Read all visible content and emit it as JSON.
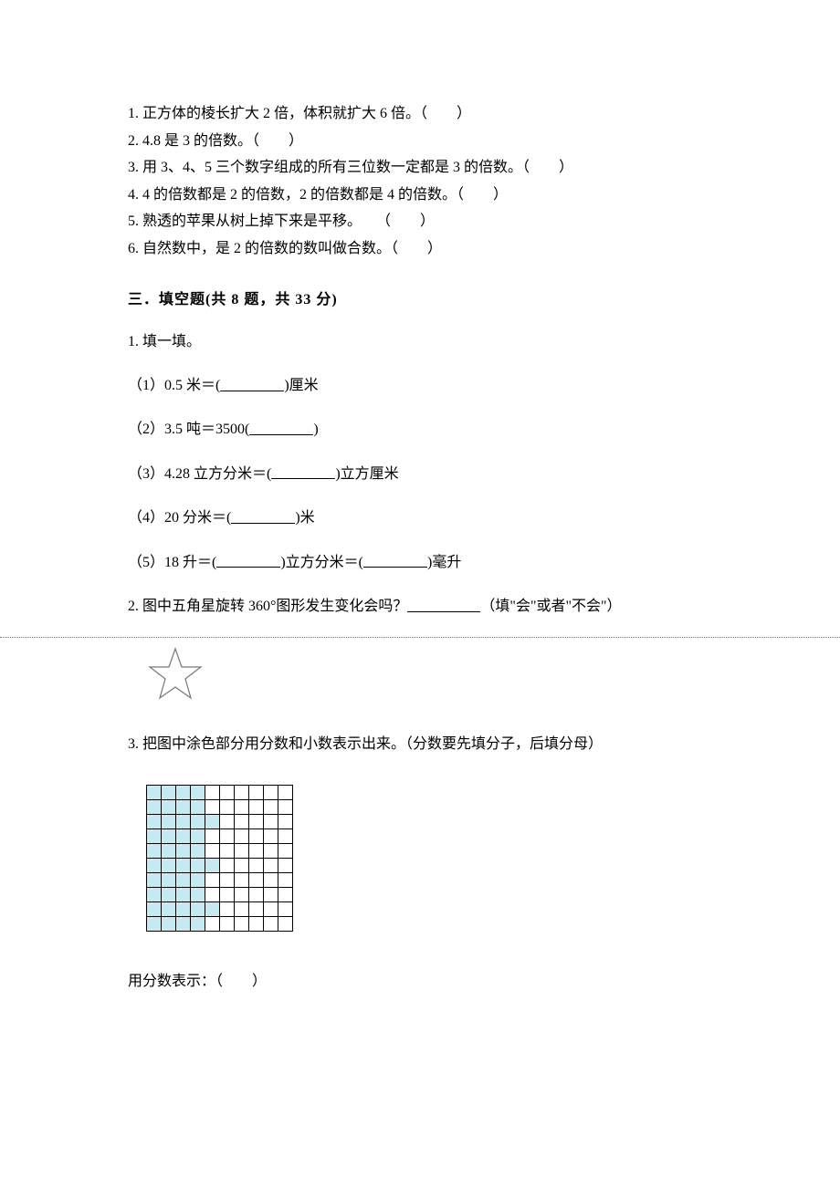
{
  "true_false": {
    "items": [
      "1. 正方体的棱长扩大 2 倍，体积就扩大 6 倍。（　　）",
      "2. 4.8 是 3 的倍数。（　　）",
      "3. 用 3、4、5 三个数字组成的所有三位数一定都是 3 的倍数。（　　）",
      "4. 4 的倍数都是 2 的倍数，2 的倍数都是 4 的倍数。（　　）",
      "5. 熟透的苹果从树上掉下来是平移。　　（　　）",
      "6. 自然数中，是 2 的倍数的数叫做合数。（　　）"
    ]
  },
  "section_header": "三．填空题(共 8 题，共 33 分)",
  "q1": {
    "title": "1. 填一填。",
    "subs": [
      {
        "pre": "（1）0.5 米＝(",
        "post": ")厘米"
      },
      {
        "pre": "（2）3.5 吨＝3500(",
        "post": ")"
      },
      {
        "pre": "（3）4.28 立方分米＝(",
        "post": ")立方厘米"
      },
      {
        "pre": "（4）20 分米＝(",
        "post": ")米"
      },
      {
        "pre": "（5）18 升＝(",
        "mid": ")立方分米＝(",
        "post": ")毫升"
      }
    ]
  },
  "q2": {
    "pre": "2. 图中五角星旋转 360°图形发生变化会吗？",
    "post": "（填\"会\"或者\"不会\"）",
    "star": {
      "stroke": "#777777",
      "fill": "none",
      "stroke_width": 1.2,
      "size": 64
    }
  },
  "q3": {
    "title": "3. 把图中涂色部分用分数和小数表示出来。（分数要先填分子，后填分母）",
    "grid": {
      "rows": 10,
      "cols": 10,
      "shaded_color": "#c5eaf0",
      "plain_color": "#ffffff",
      "border_color": "#000000",
      "shaded_cols_by_row": [
        4,
        4,
        5,
        4,
        4,
        5,
        4,
        4,
        5,
        4
      ]
    },
    "answer_label": "用分数表示：（　　）"
  },
  "colors": {
    "text": "#000000",
    "background": "#ffffff",
    "dotted": "#777777"
  }
}
